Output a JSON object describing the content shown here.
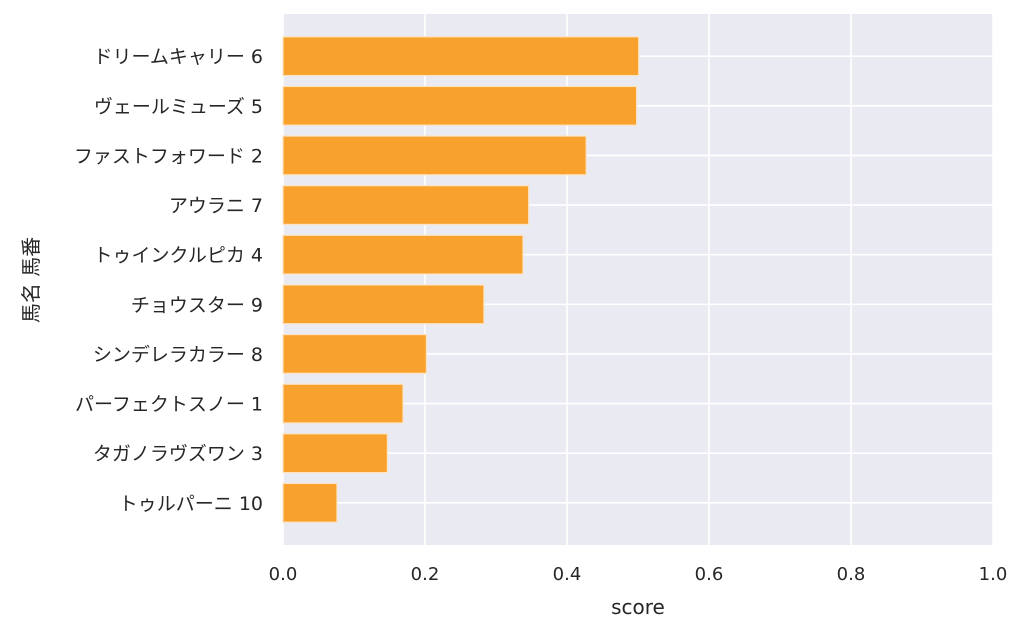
{
  "chart_data": {
    "type": "bar",
    "orientation": "horizontal",
    "title": "",
    "xlabel": "score",
    "ylabel": "馬名 馬番",
    "xlim": [
      0,
      1.0
    ],
    "xticks": [
      "0.0",
      "0.2",
      "0.4",
      "0.6",
      "0.8",
      "1.0"
    ],
    "grid": true,
    "categories": [
      "ドリームキャリー 6",
      "ヴェールミューズ 5",
      "ファストフォワード 2",
      "アウラニ 7",
      "トゥインクルピカ 4",
      "チョウスター 9",
      "シンデレラカラー 8",
      "パーフェクトスノー 1",
      "タガノラヴズワン 3",
      "トゥルパーニ 10"
    ],
    "values": [
      0.501,
      0.498,
      0.427,
      0.346,
      0.338,
      0.283,
      0.202,
      0.169,
      0.147,
      0.076
    ],
    "colors": {
      "bar": "#f99a1c",
      "background": "#eaeaf2",
      "grid": "#ffffff"
    }
  }
}
